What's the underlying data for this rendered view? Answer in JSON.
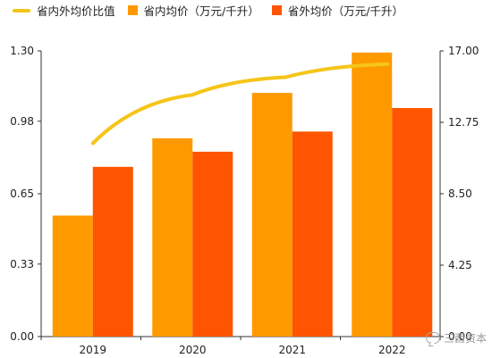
{
  "chart_data": {
    "type": "bar",
    "categories": [
      "2019",
      "2020",
      "2021",
      "2022"
    ],
    "series": [
      {
        "name": "省内均价（万元/千升）",
        "kind": "bar",
        "axis": "right",
        "color": "#FF9900",
        "values": [
          7.2,
          11.8,
          14.5,
          16.9
        ]
      },
      {
        "name": "省外均价（万元/千升）",
        "kind": "bar",
        "axis": "right",
        "color": "#FF5500",
        "values": [
          10.1,
          11.0,
          12.2,
          13.6
        ]
      },
      {
        "name": "省内外均价比值",
        "kind": "line",
        "axis": "left",
        "color": "#F5C518",
        "values": [
          0.88,
          1.1,
          1.18,
          1.24
        ]
      }
    ],
    "yleft": {
      "ticks": [
        "0.00",
        "0.33",
        "0.65",
        "0.98",
        "1.30"
      ],
      "lim": [
        0,
        1.3
      ]
    },
    "yright": {
      "ticks": [
        "0.00",
        "4.25",
        "8.50",
        "12.75",
        "17.00"
      ],
      "lim": [
        0,
        17
      ]
    },
    "grid": false,
    "legend_position": "top"
  },
  "legend": [
    {
      "label": "省内外均价比值",
      "color": "#F5C518",
      "shape": "line"
    },
    {
      "label": "省内均价（万元/千升）",
      "color": "#FF9900",
      "shape": "box"
    },
    {
      "label": "省外均价（万元/千升）",
      "color": "#FF5500",
      "shape": "box"
    }
  ],
  "watermark": {
    "text": "三酉资本",
    "icon": "chat-bubble-icon"
  }
}
